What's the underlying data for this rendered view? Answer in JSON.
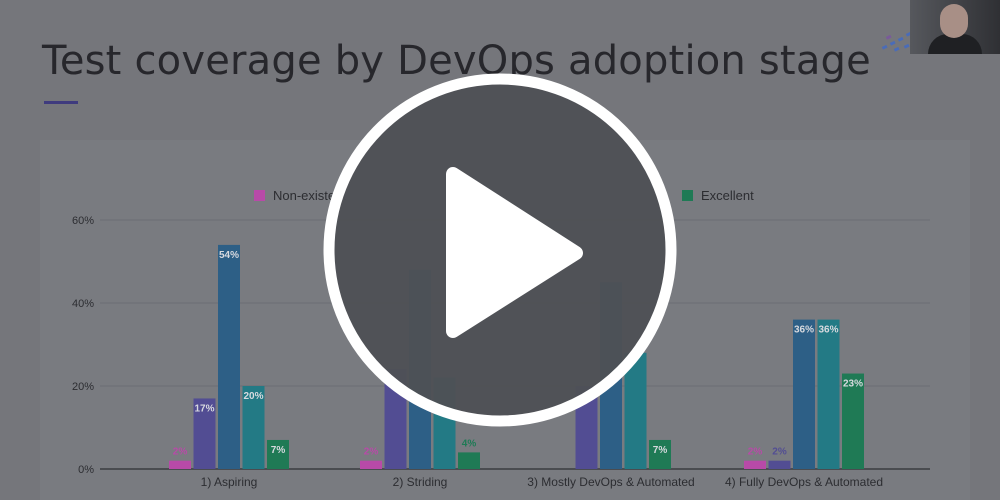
{
  "slide": {
    "title": "Test coverage by DevOps adoption stage"
  },
  "chart_data": {
    "type": "bar",
    "title": "",
    "xlabel": "",
    "ylabel": "",
    "categories": [
      "1) Aspiring",
      "2) Striding",
      "3) Mostly DevOps & Automated",
      "4) Fully DevOps & Automated"
    ],
    "series": [
      {
        "name": "Non-existent",
        "color": "#b84aa8",
        "values": [
          2,
          2,
          0,
          2
        ],
        "labels": [
          "2%",
          "2%",
          "",
          "2%"
        ]
      },
      {
        "name": "",
        "color": "#524d93",
        "values": [
          17,
          24,
          20,
          2
        ],
        "labels": [
          "17%",
          "",
          "",
          "2%"
        ]
      },
      {
        "name": "",
        "color": "#2d5f86",
        "values": [
          54,
          48,
          45,
          36
        ],
        "labels": [
          "54%",
          "",
          "",
          "36%"
        ]
      },
      {
        "name": "",
        "color": "#237a85",
        "values": [
          20,
          22,
          28,
          36
        ],
        "labels": [
          "20%",
          "",
          "",
          "36%"
        ]
      },
      {
        "name": "Excellent",
        "color": "#1f7a55",
        "values": [
          7,
          4,
          7,
          23
        ],
        "labels": [
          "7%",
          "4%",
          "7%",
          "23%"
        ]
      }
    ],
    "yticks": [
      "0%",
      "20%",
      "40%",
      "60%"
    ],
    "ylim": [
      0,
      60
    ],
    "grid": true,
    "legend": "top"
  },
  "overlay": {
    "icon": "play-icon"
  }
}
